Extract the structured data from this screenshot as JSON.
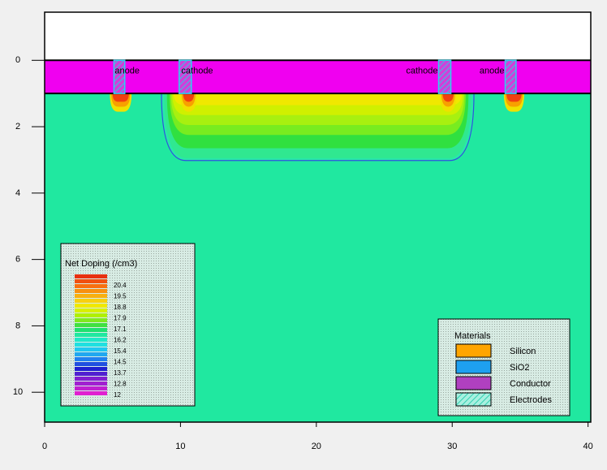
{
  "chart_data": {
    "type": "device",
    "xlim": [
      0,
      40.2
    ],
    "ylim": [
      -1.45,
      10.9
    ],
    "xticks": [
      0,
      10,
      20,
      30,
      40
    ],
    "yticks": [
      0,
      2,
      4,
      6,
      8,
      10
    ],
    "electrodes": [
      "anode",
      "cathode",
      "cathode",
      "anode"
    ],
    "doping_legend": {
      "title": "Net Doping (/cm3)",
      "labels": [
        "20.4",
        "19.5",
        "18.8",
        "17.9",
        "17.1",
        "16.2",
        "15.4",
        "14.5",
        "13.7",
        "12.8",
        "12"
      ]
    },
    "materials_legend": {
      "title": "Materials",
      "items": [
        {
          "name": "Silicon",
          "color": "#ffa500"
        },
        {
          "name": "SiO2",
          "color": "#1ea0f0"
        },
        {
          "name": "Conductor",
          "color": "#b040c0"
        },
        {
          "name": "Electrodes",
          "color": "#40e0c0"
        }
      ]
    }
  }
}
